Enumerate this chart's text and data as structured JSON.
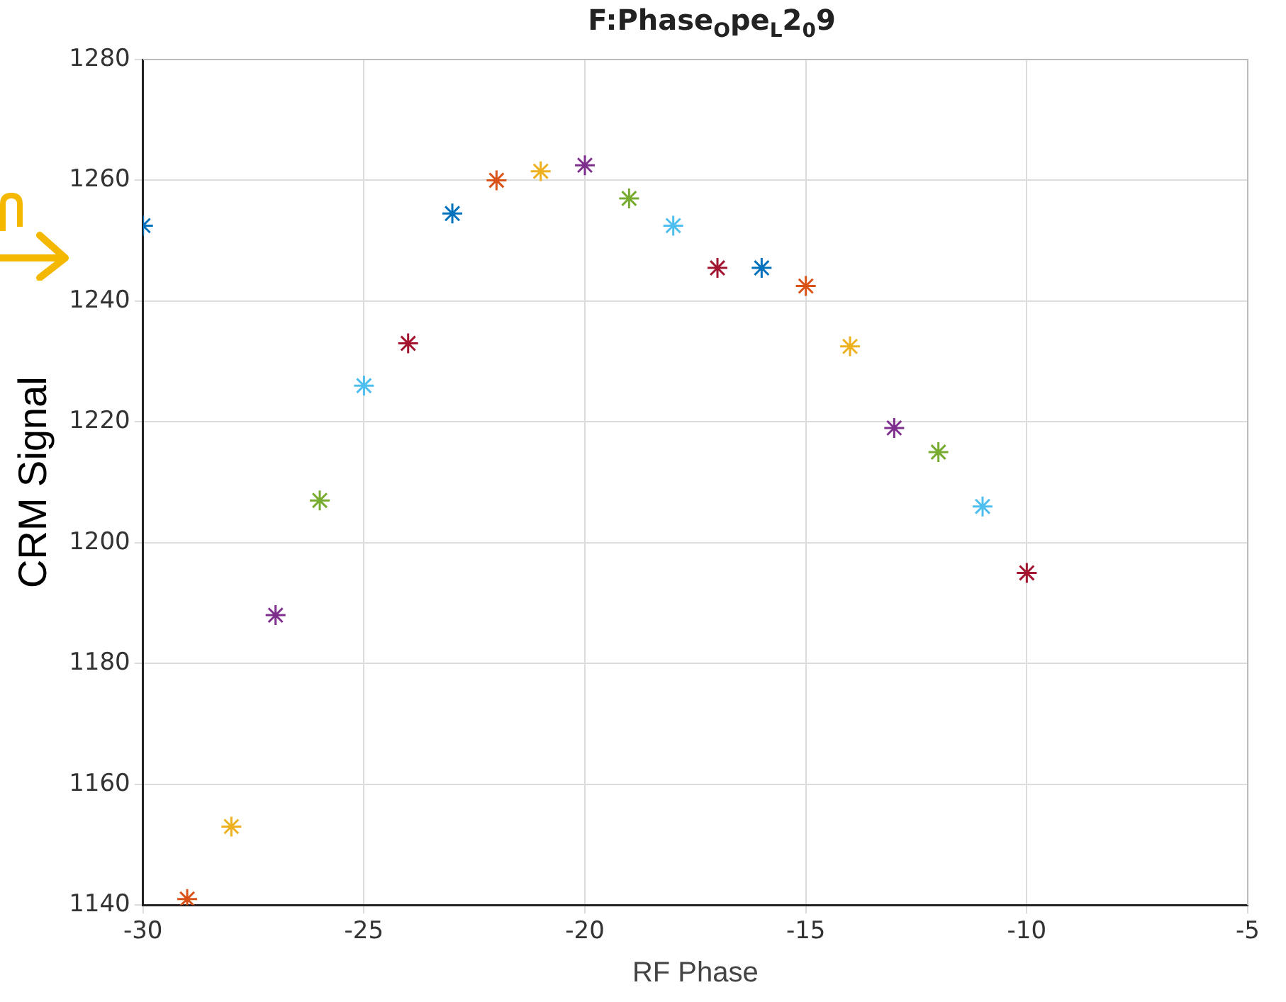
{
  "chart_data": {
    "type": "scatter",
    "title": "F:Phase$_{O}$pe$_{L}$2$_{0}$9",
    "xlabel": "RF Phase",
    "ylabel": "CRM Signal",
    "x": [
      -30,
      -29,
      -28,
      -27,
      -26,
      -25,
      -24,
      -23,
      -22,
      -21,
      -20,
      -19,
      -18,
      -17,
      -16,
      -15,
      -14,
      -13,
      -12,
      -11,
      -10
    ],
    "series": [
      {
        "values": [
          1252.5,
          1141,
          1153,
          1188,
          1207,
          1226,
          1233,
          1254.5,
          1260,
          1261.5,
          1262.5,
          1257,
          1252.5,
          1245.5,
          1245.5,
          1242.5,
          1232.5,
          1219,
          1215,
          1206,
          1195
        ],
        "colors": [
          "#0072bd",
          "#d95319",
          "#edb120",
          "#7e2f8e",
          "#77ac30",
          "#4dbeee",
          "#a2142f",
          "#0072bd",
          "#d95319",
          "#edb120",
          "#7e2f8e",
          "#77ac30",
          "#4dbeee",
          "#a2142f",
          "#0072bd",
          "#d95319",
          "#edb120",
          "#7e2f8e",
          "#77ac30",
          "#4dbeee",
          "#a2142f"
        ]
      }
    ],
    "xlim": [
      -30,
      -5
    ],
    "xticks": [
      -30,
      -25,
      -20,
      -15,
      -10,
      -5
    ],
    "ylim": [
      1140,
      1280
    ],
    "yticks": [
      1140,
      1160,
      1180,
      1200,
      1220,
      1240,
      1260,
      1280
    ],
    "grid": true,
    "legend": false,
    "marker": "cross"
  }
}
